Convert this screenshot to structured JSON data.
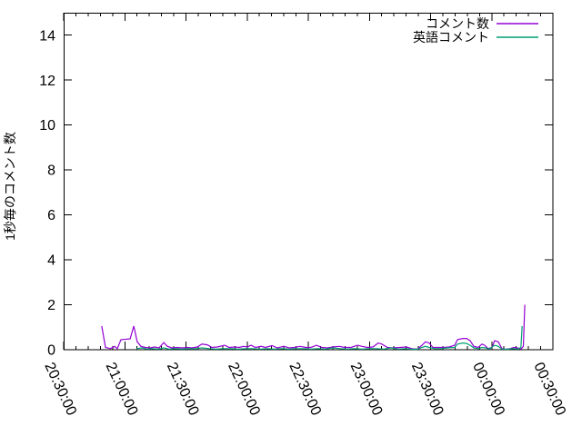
{
  "chart_data": {
    "type": "line",
    "ylabel": "1秒毎のコメント数",
    "xlabel": "",
    "background_color": "#ffffff",
    "axis_color": "#000000",
    "x_axis": {
      "tick_labels": [
        "20:30:00",
        "21:00:00",
        "21:30:00",
        "22:00:00",
        "22:30:00",
        "23:00:00",
        "23:30:00",
        "00:00:00",
        "00:30:00"
      ],
      "range_minutes": [
        0,
        240
      ],
      "major_tick_every_minutes": 30,
      "minor_tick_every_minutes": 6,
      "label_rotation_deg": 65
    },
    "y_axis": {
      "tick_labels": [
        "0",
        "2",
        "4",
        "6",
        "8",
        "10",
        "12",
        "14"
      ],
      "ticks": [
        0,
        2,
        4,
        6,
        8,
        10,
        12,
        14
      ],
      "range": [
        0,
        15
      ],
      "grid": false
    },
    "legend": {
      "position": "top-right-inside",
      "box": false
    },
    "series": [
      {
        "name": "コメント数",
        "color": "#9400d3",
        "points": [
          [
            18.7,
            1.05
          ],
          [
            20.5,
            0.1
          ],
          [
            23,
            0.05
          ],
          [
            25,
            0.15
          ],
          [
            26.3,
            0.05
          ],
          [
            28.1,
            0.45
          ],
          [
            32.6,
            0.48
          ],
          [
            34.4,
            1.05
          ],
          [
            36.1,
            0.35
          ],
          [
            37.9,
            0.15
          ],
          [
            40.1,
            0.1
          ],
          [
            42.4,
            0.08
          ],
          [
            44.6,
            0.12
          ],
          [
            46.8,
            0.08
          ],
          [
            49.1,
            0.32
          ],
          [
            50.9,
            0.15
          ],
          [
            53.1,
            0.08
          ],
          [
            55.8,
            0.1
          ],
          [
            58,
            0.08
          ],
          [
            60.7,
            0.1
          ],
          [
            62.9,
            0.08
          ],
          [
            65.6,
            0.12
          ],
          [
            67.8,
            0.25
          ],
          [
            70.5,
            0.22
          ],
          [
            72.7,
            0.1
          ],
          [
            75.4,
            0.12
          ],
          [
            79,
            0.2
          ],
          [
            81.2,
            0.1
          ],
          [
            83.9,
            0.12
          ],
          [
            86.1,
            0.1
          ],
          [
            88.3,
            0.15
          ],
          [
            90.1,
            0.12
          ],
          [
            91.9,
            0.2
          ],
          [
            94.1,
            0.1
          ],
          [
            96.8,
            0.15
          ],
          [
            99,
            0.1
          ],
          [
            102.2,
            0.18
          ],
          [
            104.8,
            0.08
          ],
          [
            108,
            0.15
          ],
          [
            110.6,
            0.08
          ],
          [
            113.3,
            0.1
          ],
          [
            116,
            0.15
          ],
          [
            118.7,
            0.1
          ],
          [
            121.3,
            0.1
          ],
          [
            124,
            0.2
          ],
          [
            126.7,
            0.1
          ],
          [
            129.4,
            0.08
          ],
          [
            132,
            0.12
          ],
          [
            135.2,
            0.15
          ],
          [
            137.8,
            0.1
          ],
          [
            141,
            0.1
          ],
          [
            144.1,
            0.2
          ],
          [
            146.3,
            0.15
          ],
          [
            149,
            0.1
          ],
          [
            151.7,
            0.12
          ],
          [
            154.3,
            0.3
          ],
          [
            156.1,
            0.25
          ],
          [
            158.8,
            0.1
          ],
          [
            161.5,
            0.08
          ],
          [
            165,
            0.1
          ],
          [
            168.2,
            0.12
          ],
          [
            170.8,
            0.05
          ],
          [
            173.5,
            0.03
          ],
          [
            175.8,
            0.2
          ],
          [
            177.5,
            0.35
          ],
          [
            179.3,
            0.3
          ],
          [
            181.1,
            0.1
          ],
          [
            183.8,
            0.1
          ],
          [
            186.5,
            0.1
          ],
          [
            189.1,
            0.12
          ],
          [
            191.8,
            0.2
          ],
          [
            193.2,
            0.45
          ],
          [
            195.8,
            0.5
          ],
          [
            197.6,
            0.5
          ],
          [
            199.4,
            0.4
          ],
          [
            201.2,
            0.15
          ],
          [
            203.4,
            0.1
          ],
          [
            205.2,
            0.25
          ],
          [
            206.5,
            0.2
          ],
          [
            208.3,
            0.05
          ],
          [
            210.1,
            0.1
          ],
          [
            211.4,
            0.4
          ],
          [
            213.2,
            0.35
          ],
          [
            215,
            0.05
          ],
          [
            216.8,
            0.02
          ],
          [
            219,
            0.05
          ],
          [
            220.8,
            0.1
          ],
          [
            222.6,
            0.08
          ],
          [
            224.4,
            0.03
          ],
          [
            225.5,
            0.15
          ],
          [
            226.2,
            2.0
          ]
        ]
      },
      {
        "name": "英語コメント",
        "color": "#009e73",
        "points": [
          [
            35.7,
            0.05
          ],
          [
            38.4,
            0.08
          ],
          [
            41,
            0.03
          ],
          [
            43.7,
            0.05
          ],
          [
            46.4,
            0.03
          ],
          [
            49.1,
            0.08
          ],
          [
            51.7,
            0.03
          ],
          [
            54.9,
            0.05
          ],
          [
            58,
            0.03
          ],
          [
            61.6,
            0.05
          ],
          [
            65.1,
            0.05
          ],
          [
            67.8,
            0.08
          ],
          [
            71.4,
            0.05
          ],
          [
            74.9,
            0.03
          ],
          [
            78.5,
            0.05
          ],
          [
            82.1,
            0.05
          ],
          [
            85.6,
            0.03
          ],
          [
            89.2,
            0.05
          ],
          [
            92.8,
            0.05
          ],
          [
            96.4,
            0.03
          ],
          [
            99.9,
            0.05
          ],
          [
            103.5,
            0.03
          ],
          [
            107.1,
            0.05
          ],
          [
            110.6,
            0.03
          ],
          [
            114.2,
            0.05
          ],
          [
            117.8,
            0.05
          ],
          [
            121.3,
            0.03
          ],
          [
            124.9,
            0.05
          ],
          [
            128.5,
            0.03
          ],
          [
            132,
            0.08
          ],
          [
            135.6,
            0.05
          ],
          [
            139.2,
            0.03
          ],
          [
            142.7,
            0.05
          ],
          [
            146.3,
            0.03
          ],
          [
            149.9,
            0.05
          ],
          [
            153.4,
            0.05
          ],
          [
            157,
            0.03
          ],
          [
            160.6,
            0.08
          ],
          [
            164.1,
            0.03
          ],
          [
            167.7,
            0.05
          ],
          [
            170.8,
            0.02
          ],
          [
            173.5,
            0.02
          ],
          [
            175.8,
            0.1
          ],
          [
            177.5,
            0.15
          ],
          [
            179.3,
            0.1
          ],
          [
            182,
            0.05
          ],
          [
            185.1,
            0.05
          ],
          [
            188.2,
            0.08
          ],
          [
            191.8,
            0.1
          ],
          [
            193.2,
            0.25
          ],
          [
            195.8,
            0.3
          ],
          [
            197.6,
            0.28
          ],
          [
            199.4,
            0.2
          ],
          [
            201.2,
            0.08
          ],
          [
            203.4,
            0.05
          ],
          [
            205.2,
            0.1
          ],
          [
            207,
            0.08
          ],
          [
            208.8,
            0.03
          ],
          [
            211.4,
            0.2
          ],
          [
            213.2,
            0.15
          ],
          [
            215,
            0.03
          ],
          [
            217.7,
            0.02
          ],
          [
            220.4,
            0.05
          ],
          [
            223,
            0.03
          ],
          [
            224.3,
            0.1
          ],
          [
            224.9,
            1.05
          ]
        ]
      }
    ]
  }
}
